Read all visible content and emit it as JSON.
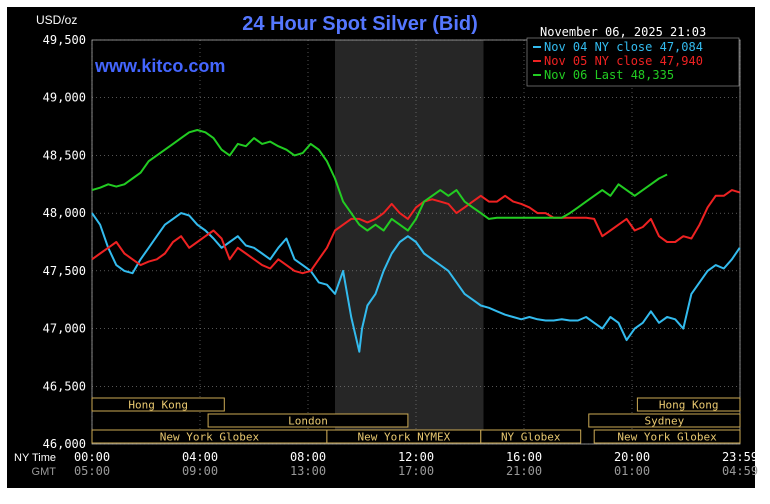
{
  "chart_data": {
    "type": "line",
    "title": "24 Hour Spot Silver (Bid)",
    "unit_label": "USD/oz",
    "watermark": "www.kitco.com",
    "timestamp": "November 06, 2025 21:03",
    "ylim": [
      46000,
      49500
    ],
    "y_ticks": [
      "49,500",
      "49,000",
      "48,500",
      "48,000",
      "47,500",
      "47,000",
      "46,500",
      "46,000"
    ],
    "y_tick_values": [
      49500,
      49000,
      48500,
      48000,
      47500,
      47000,
      46500,
      46000
    ],
    "xlim": [
      0,
      24
    ],
    "x_axis_rows": [
      {
        "label": "NY Time",
        "ticks": [
          "00:00",
          "04:00",
          "08:00",
          "12:00",
          "16:00",
          "20:00",
          "23:59"
        ]
      },
      {
        "label": "GMT",
        "ticks": [
          "05:00",
          "09:00",
          "13:00",
          "17:00",
          "21:00",
          "01:00",
          "04:59"
        ]
      }
    ],
    "x_tick_hours": [
      0,
      4,
      8,
      12,
      16,
      20,
      24
    ],
    "grid": true,
    "legend_position": "top-right",
    "shaded_region_hours": [
      9,
      14.5
    ],
    "series": [
      {
        "name": "Nov 04 NY close 47,084",
        "color": "#33bbee",
        "x": [
          0,
          0.3,
          0.6,
          0.9,
          1.2,
          1.5,
          1.8,
          2.1,
          2.4,
          2.7,
          3.0,
          3.3,
          3.6,
          3.9,
          4.2,
          4.5,
          4.8,
          5.1,
          5.4,
          5.7,
          6.0,
          6.3,
          6.6,
          6.9,
          7.2,
          7.5,
          7.8,
          8.1,
          8.4,
          8.7,
          9.0,
          9.3,
          9.6,
          9.9,
          10.0,
          10.2,
          10.5,
          10.8,
          11.1,
          11.4,
          11.7,
          12.0,
          12.3,
          12.6,
          12.9,
          13.2,
          13.5,
          13.8,
          14.1,
          14.4,
          14.7,
          15.0,
          15.3,
          15.6,
          15.9,
          16.2,
          16.5,
          16.8,
          17.1,
          17.4,
          17.7,
          18.0,
          18.3,
          18.6,
          18.9,
          19.2,
          19.5,
          19.8,
          20.1,
          20.4,
          20.7,
          21.0,
          21.3,
          21.6,
          21.9,
          22.2,
          22.5,
          22.8,
          23.1,
          23.4,
          23.7,
          23.99
        ],
        "values": [
          48000,
          47900,
          47700,
          47550,
          47500,
          47480,
          47600,
          47700,
          47800,
          47900,
          47950,
          48000,
          47980,
          47900,
          47850,
          47780,
          47700,
          47750,
          47800,
          47720,
          47700,
          47650,
          47600,
          47700,
          47780,
          47600,
          47550,
          47500,
          47400,
          47380,
          47300,
          47500,
          47100,
          46800,
          47000,
          47200,
          47300,
          47500,
          47650,
          47750,
          47800,
          47750,
          47650,
          47600,
          47550,
          47500,
          47400,
          47300,
          47250,
          47200,
          47180,
          47150,
          47120,
          47100,
          47080,
          47100,
          47080,
          47070,
          47070,
          47080,
          47070,
          47070,
          47100,
          47050,
          47000,
          47100,
          47050,
          46900,
          47000,
          47050,
          47150,
          47050,
          47100,
          47080,
          47000,
          47300,
          47400,
          47500,
          47550,
          47520,
          47600,
          47700
        ]
      },
      {
        "name": "Nov 05 NY close 47,940",
        "color": "#ee2222",
        "x": [
          0,
          0.3,
          0.6,
          0.9,
          1.2,
          1.5,
          1.8,
          2.1,
          2.4,
          2.7,
          3.0,
          3.3,
          3.6,
          3.9,
          4.2,
          4.5,
          4.8,
          5.1,
          5.4,
          5.7,
          6.0,
          6.3,
          6.6,
          6.9,
          7.2,
          7.5,
          7.8,
          8.1,
          8.4,
          8.7,
          9.0,
          9.3,
          9.6,
          9.9,
          10.2,
          10.5,
          10.8,
          11.1,
          11.4,
          11.7,
          12.0,
          12.3,
          12.6,
          12.9,
          13.2,
          13.5,
          13.8,
          14.1,
          14.4,
          14.7,
          15.0,
          15.3,
          15.6,
          15.9,
          16.2,
          16.5,
          16.8,
          17.1,
          17.4,
          17.7,
          18.0,
          18.3,
          18.6,
          18.9,
          19.2,
          19.5,
          19.8,
          20.1,
          20.4,
          20.7,
          21.0,
          21.3,
          21.6,
          21.9,
          22.2,
          22.5,
          22.8,
          23.1,
          23.4,
          23.7,
          23.99
        ],
        "values": [
          47600,
          47650,
          47700,
          47750,
          47650,
          47600,
          47550,
          47580,
          47600,
          47650,
          47750,
          47800,
          47700,
          47750,
          47800,
          47850,
          47780,
          47600,
          47700,
          47650,
          47600,
          47550,
          47520,
          47600,
          47550,
          47500,
          47480,
          47500,
          47600,
          47700,
          47850,
          47900,
          47950,
          47950,
          47920,
          47950,
          48000,
          48080,
          48000,
          47950,
          48050,
          48100,
          48120,
          48100,
          48080,
          48000,
          48050,
          48100,
          48150,
          48100,
          48100,
          48150,
          48100,
          48080,
          48050,
          48000,
          48000,
          47960,
          47960,
          47960,
          47960,
          47960,
          47950,
          47800,
          47850,
          47900,
          47950,
          47850,
          47880,
          47950,
          47800,
          47750,
          47750,
          47800,
          47780,
          47900,
          48050,
          48150,
          48150,
          48200,
          48180
        ]
      },
      {
        "name": "Nov 06 Last 48,335",
        "color": "#22cc22",
        "x": [
          0,
          0.3,
          0.6,
          0.9,
          1.2,
          1.5,
          1.8,
          2.1,
          2.4,
          2.7,
          3.0,
          3.3,
          3.6,
          3.9,
          4.2,
          4.5,
          4.8,
          5.1,
          5.4,
          5.7,
          6.0,
          6.3,
          6.6,
          6.9,
          7.2,
          7.5,
          7.8,
          8.1,
          8.4,
          8.7,
          9.0,
          9.3,
          9.6,
          9.9,
          10.2,
          10.5,
          10.8,
          11.1,
          11.4,
          11.7,
          12.0,
          12.3,
          12.6,
          12.9,
          13.2,
          13.5,
          13.8,
          14.1,
          14.4,
          14.7,
          15.0,
          15.3,
          15.6,
          15.9,
          16.2,
          16.5,
          16.8,
          17.1,
          17.4,
          17.7,
          18.0,
          18.3,
          18.6,
          18.9,
          19.2,
          19.5,
          19.8,
          20.1,
          20.4,
          20.7,
          21.0,
          21.3
        ],
        "values": [
          48200,
          48220,
          48250,
          48230,
          48250,
          48300,
          48350,
          48450,
          48500,
          48550,
          48600,
          48650,
          48700,
          48720,
          48700,
          48650,
          48550,
          48500,
          48600,
          48580,
          48650,
          48600,
          48620,
          48580,
          48550,
          48500,
          48520,
          48600,
          48550,
          48450,
          48300,
          48100,
          48000,
          47900,
          47850,
          47900,
          47850,
          47950,
          47900,
          47850,
          47950,
          48100,
          48150,
          48200,
          48150,
          48200,
          48100,
          48050,
          48000,
          47950,
          47960,
          47960,
          47960,
          47960,
          47960,
          47960,
          47960,
          47960,
          47960,
          48000,
          48050,
          48100,
          48150,
          48200,
          48150,
          48250,
          48200,
          48150,
          48200,
          48250,
          48300,
          48335
        ]
      }
    ],
    "market_sessions": [
      {
        "label": "Hong Kong",
        "row": 1,
        "start": 0,
        "end": 4.9
      },
      {
        "label": "London",
        "row": 2,
        "start": 4.3,
        "end": 11.7
      },
      {
        "label": "New York Globex",
        "row": 3,
        "start": 0,
        "end": 8.7
      },
      {
        "label": "New York NYMEX",
        "row": 3,
        "start": 8.7,
        "end": 14.4
      },
      {
        "label": "NY Globex",
        "row": 3,
        "start": 14.4,
        "end": 18.1
      },
      {
        "label": "Sydney",
        "row": 2,
        "start": 18.4,
        "end": 24
      },
      {
        "label": "Hong Kong",
        "row": 1,
        "start": 20.2,
        "end": 24
      },
      {
        "label": "New York Globex",
        "row": 3,
        "start": 18.6,
        "end": 24
      }
    ]
  }
}
